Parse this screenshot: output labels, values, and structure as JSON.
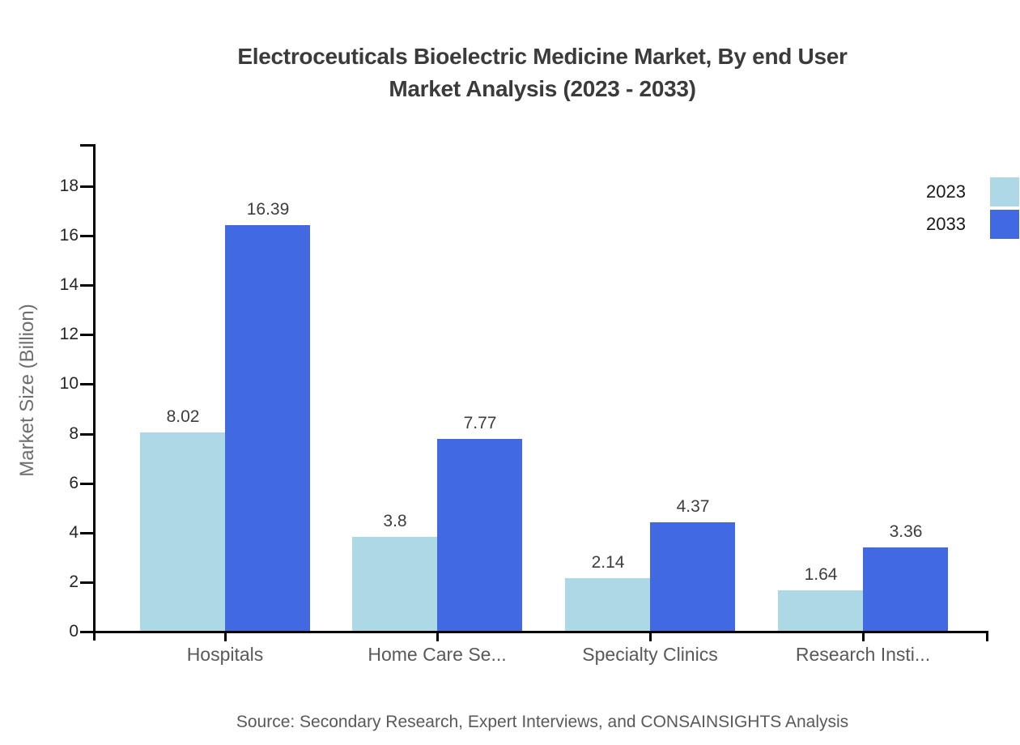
{
  "title": {
    "line1": "Electroceuticals Bioelectric Medicine Market, By end User",
    "line2": "Market Analysis (2023 - 2033)"
  },
  "y_axis": {
    "title": "Market Size (Billion)"
  },
  "source": {
    "text": "Source: Secondary Research, Expert Interviews, and CONSAINSIGHTS Analysis"
  },
  "colors": {
    "series_2023": "#ADD8E6",
    "series_2033": "#4169E1",
    "axis": "#000000",
    "title_text": "#3b3b3b",
    "tick_text": "#262626",
    "category_text": "#595959",
    "value_text": "#3d3d3d",
    "source_text": "#595959"
  },
  "legend": {
    "position": "top-right",
    "items": [
      {
        "label": "2023",
        "color": "#ADD8E6"
      },
      {
        "label": "2033",
        "color": "#4169E1"
      }
    ]
  },
  "chart_data": {
    "type": "bar",
    "title": "Electroceuticals Bioelectric Medicine Market, By end User Market Analysis (2023 - 2033)",
    "categories": [
      "Hospitals",
      "Home Care Se...",
      "Specialty Clinics",
      "Research Insti..."
    ],
    "series": [
      {
        "name": "2023",
        "color": "#ADD8E6",
        "values": [
          8.02,
          3.8,
          2.14,
          1.64
        ]
      },
      {
        "name": "2033",
        "color": "#4169E1",
        "values": [
          16.39,
          7.77,
          4.37,
          3.36
        ]
      }
    ],
    "xlabel": "",
    "ylabel": "Market Size (Billion)",
    "ylim": [
      0,
      18
    ],
    "yticks": [
      0,
      2,
      4,
      6,
      8,
      10,
      12,
      14,
      16,
      18
    ],
    "grid": false,
    "legend_position": "top-right",
    "value_labels_shown": true
  }
}
